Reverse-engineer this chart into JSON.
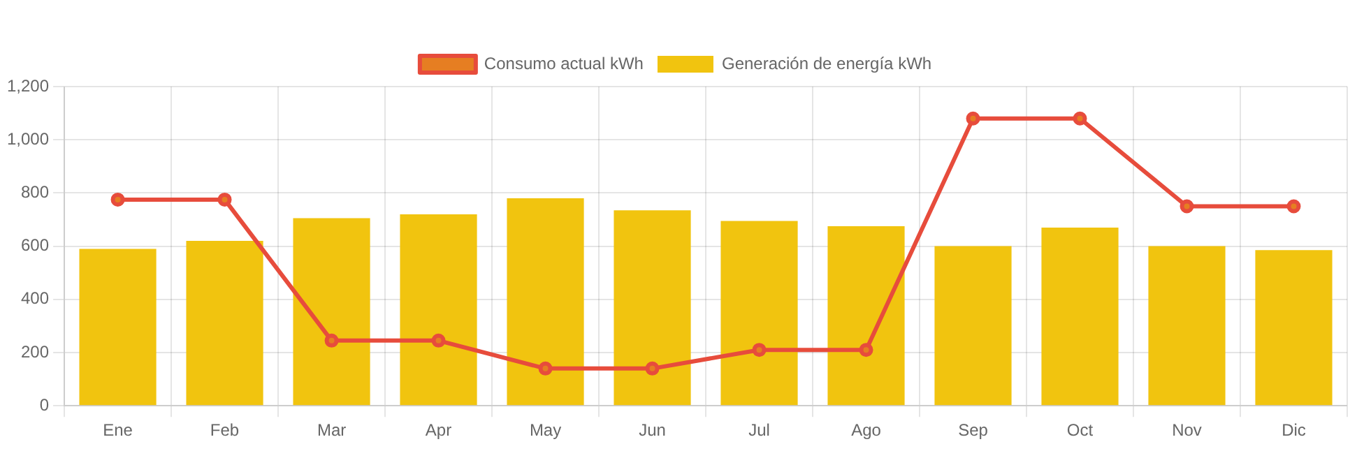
{
  "chart_data": {
    "type": "bar",
    "categories": [
      "Ene",
      "Feb",
      "Mar",
      "Apr",
      "May",
      "Jun",
      "Jul",
      "Ago",
      "Sep",
      "Oct",
      "Nov",
      "Dic"
    ],
    "series": [
      {
        "name": "Consumo actual kWh",
        "type": "line",
        "color": "#e74c3c",
        "values": [
          775,
          775,
          245,
          245,
          140,
          140,
          210,
          210,
          1080,
          1080,
          750,
          750
        ]
      },
      {
        "name": "Generación de energía kWh",
        "color": "#f1c40f",
        "values": [
          590,
          620,
          705,
          720,
          780,
          735,
          695,
          675,
          600,
          670,
          600,
          585
        ]
      }
    ],
    "ylim": [
      0,
      1200
    ],
    "yticks": [
      0,
      200,
      400,
      600,
      800,
      {
        "value": 1000,
        "label": "1,000"
      },
      {
        "value": 1200,
        "label": "1,200"
      }
    ],
    "grid": true,
    "legend": "top",
    "marker": "circle"
  }
}
